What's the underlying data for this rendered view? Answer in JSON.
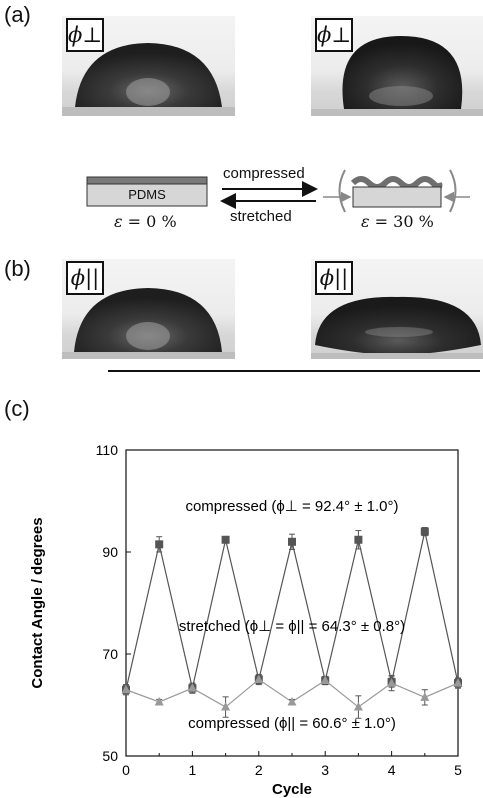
{
  "panels": {
    "a": "(a)",
    "b": "(b)",
    "c": "(c)"
  },
  "droplets": {
    "a_left_label": "ϕ⊥",
    "a_right_label": "ϕ⊥",
    "b_left_label": "ϕ||",
    "b_right_label": "ϕ||"
  },
  "schematic": {
    "substrate_label": "PDMS",
    "compressed_label": "compressed",
    "stretched_label": "stretched",
    "left_strain_symbol": "ε",
    "left_strain_value": " = 0 %",
    "right_strain_symbol": "ε",
    "right_strain_value": " = 30 %",
    "colors": {
      "film": "#7a7a7a",
      "substrate": "#d6d6d6"
    }
  },
  "chart_data": {
    "type": "line",
    "xlabel": "Cycle",
    "ylabel": "Contact Angle / degrees",
    "xlim": [
      0,
      5
    ],
    "ylim": [
      50,
      110
    ],
    "xticks": [
      "0",
      "1",
      "2",
      "3",
      "4",
      "5"
    ],
    "yticks": [
      "50",
      "70",
      "90",
      "110"
    ],
    "grid": false,
    "series": [
      {
        "marker": "square",
        "color": "#555555",
        "x": [
          0,
          0.5,
          1,
          1.5,
          2,
          2.5,
          3,
          3.5,
          4,
          4.5,
          5
        ],
        "y": [
          63,
          91.5,
          63.3,
          92.4,
          65,
          92,
          64.8,
          92.4,
          64.5,
          94,
          64.3
        ],
        "err": [
          1.0,
          1.5,
          1.0,
          0.5,
          1.0,
          1.5,
          0.8,
          1.8,
          1.0,
          0.8,
          1.0
        ]
      },
      {
        "marker": "triangle",
        "color": "#999999",
        "x": [
          0,
          0.5,
          1,
          1.5,
          2,
          2.5,
          3,
          3.5,
          4,
          4.5,
          5
        ],
        "y": [
          63,
          60.6,
          63.3,
          59.6,
          65,
          60.6,
          64.8,
          59.6,
          64.3,
          61.5,
          64.3
        ],
        "err": [
          0.8,
          0.5,
          0.8,
          2.0,
          0.8,
          0.5,
          0.8,
          2.2,
          1.5,
          1.5,
          0.8
        ]
      }
    ],
    "annotations": [
      {
        "text": "compressed (ϕ⊥ = 92.4° ± 1.0°)",
        "x": 2.5,
        "y": 98
      },
      {
        "text": "stretched (ϕ⊥ = ϕ|| = 64.3° ± 0.8°)",
        "x": 2.5,
        "y": 74.5
      },
      {
        "text": "compressed (ϕ|| = 60.6° ± 1.0°)",
        "x": 2.5,
        "y": 55.5
      }
    ]
  }
}
